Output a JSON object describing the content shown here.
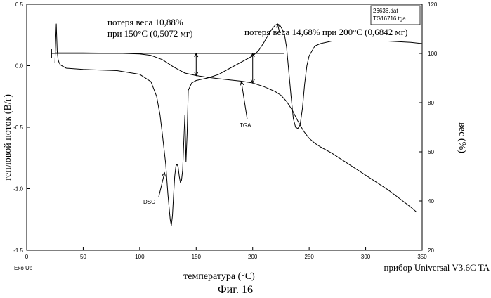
{
  "figure_caption": "Фиг. 16",
  "file_names": [
    "26636.dat",
    "TG16716.tga"
  ],
  "exo_label": "Exo Up",
  "instrument": "прибор Universal V3.6C TA",
  "chart_data": {
    "type": "line",
    "xlabel": "температура (°C)",
    "ylabel": "тепловой поток (В/г)",
    "y2label": "вес (%)",
    "xlim": [
      0,
      350
    ],
    "ylim": [
      -1.5,
      0.5
    ],
    "y2lim": [
      20,
      120
    ],
    "xticks": [
      0,
      50,
      100,
      150,
      200,
      250,
      300,
      350
    ],
    "yticks": [
      0.5,
      0.0,
      -0.5,
      -1.0,
      -1.5
    ],
    "yticklabels": [
      "0.5",
      "0.0",
      "-0.5",
      "-1.0",
      "-1.5"
    ],
    "y2ticks": [
      120,
      100,
      80,
      60,
      40,
      20
    ],
    "series": [
      {
        "name": "DSC",
        "axis": "left",
        "x": [
          25,
          25.6,
          26.2,
          27,
          27.8,
          28.5,
          29.5,
          31,
          35,
          50,
          80,
          100,
          110,
          115,
          118,
          120,
          123,
          125,
          127,
          128,
          129,
          130,
          131,
          132,
          133,
          134,
          135,
          136,
          137,
          138,
          139,
          140,
          141,
          142,
          143,
          146,
          150,
          160,
          170,
          180,
          190,
          200,
          205,
          210,
          215,
          218,
          220,
          222,
          224,
          226,
          228,
          230,
          232,
          234,
          236,
          238,
          240,
          242,
          244,
          246,
          248,
          250,
          255,
          260,
          270,
          280,
          300,
          320,
          340,
          350
        ],
        "y": [
          0.02,
          0.2,
          0.34,
          0.12,
          0.05,
          0.03,
          0.01,
          0.0,
          -0.02,
          -0.03,
          -0.04,
          -0.07,
          -0.13,
          -0.25,
          -0.4,
          -0.55,
          -0.8,
          -1.05,
          -1.25,
          -1.3,
          -1.22,
          -1.05,
          -0.9,
          -0.82,
          -0.8,
          -0.82,
          -0.9,
          -0.95,
          -0.93,
          -0.85,
          -0.62,
          -0.4,
          -0.78,
          -0.55,
          -0.2,
          -0.14,
          -0.12,
          -0.1,
          -0.07,
          -0.02,
          0.03,
          0.08,
          0.12,
          0.19,
          0.27,
          0.31,
          0.33,
          0.34,
          0.33,
          0.3,
          0.26,
          0.15,
          -0.05,
          -0.25,
          -0.43,
          -0.5,
          -0.51,
          -0.48,
          -0.35,
          -0.15,
          0.0,
          0.08,
          0.16,
          0.18,
          0.2,
          0.2,
          0.2,
          0.2,
          0.19,
          0.18
        ]
      },
      {
        "name": "TGA",
        "axis": "right",
        "x": [
          25,
          50,
          80,
          100,
          110,
          120,
          130,
          140,
          150,
          160,
          170,
          180,
          190,
          200,
          210,
          220,
          225,
          230,
          235,
          240,
          245,
          250,
          255,
          260,
          270,
          280,
          290,
          300,
          310,
          320,
          330,
          340,
          345
        ],
        "y": [
          100.2,
          100.2,
          100.1,
          99.8,
          99.2,
          97.5,
          94.5,
          92.0,
          91.0,
          90.3,
          89.7,
          89.2,
          88.7,
          88.0,
          86.5,
          84.5,
          83.0,
          80.5,
          77.0,
          72.5,
          68.5,
          65.5,
          63.5,
          62.0,
          59.5,
          56.5,
          53.5,
          50.5,
          47.5,
          44.5,
          41.0,
          37.5,
          35.5
        ]
      }
    ],
    "annotations": [
      {
        "text": "потеря веса 10,88%",
        "x": 150
      },
      {
        "text": "при 150°C (0,5072 мг)",
        "x": 150
      },
      {
        "text": "потеря веса 14,68% при  200°C (0,6842 мг)",
        "x": 200
      },
      {
        "text": "DSC"
      },
      {
        "text": "TGA"
      }
    ]
  }
}
